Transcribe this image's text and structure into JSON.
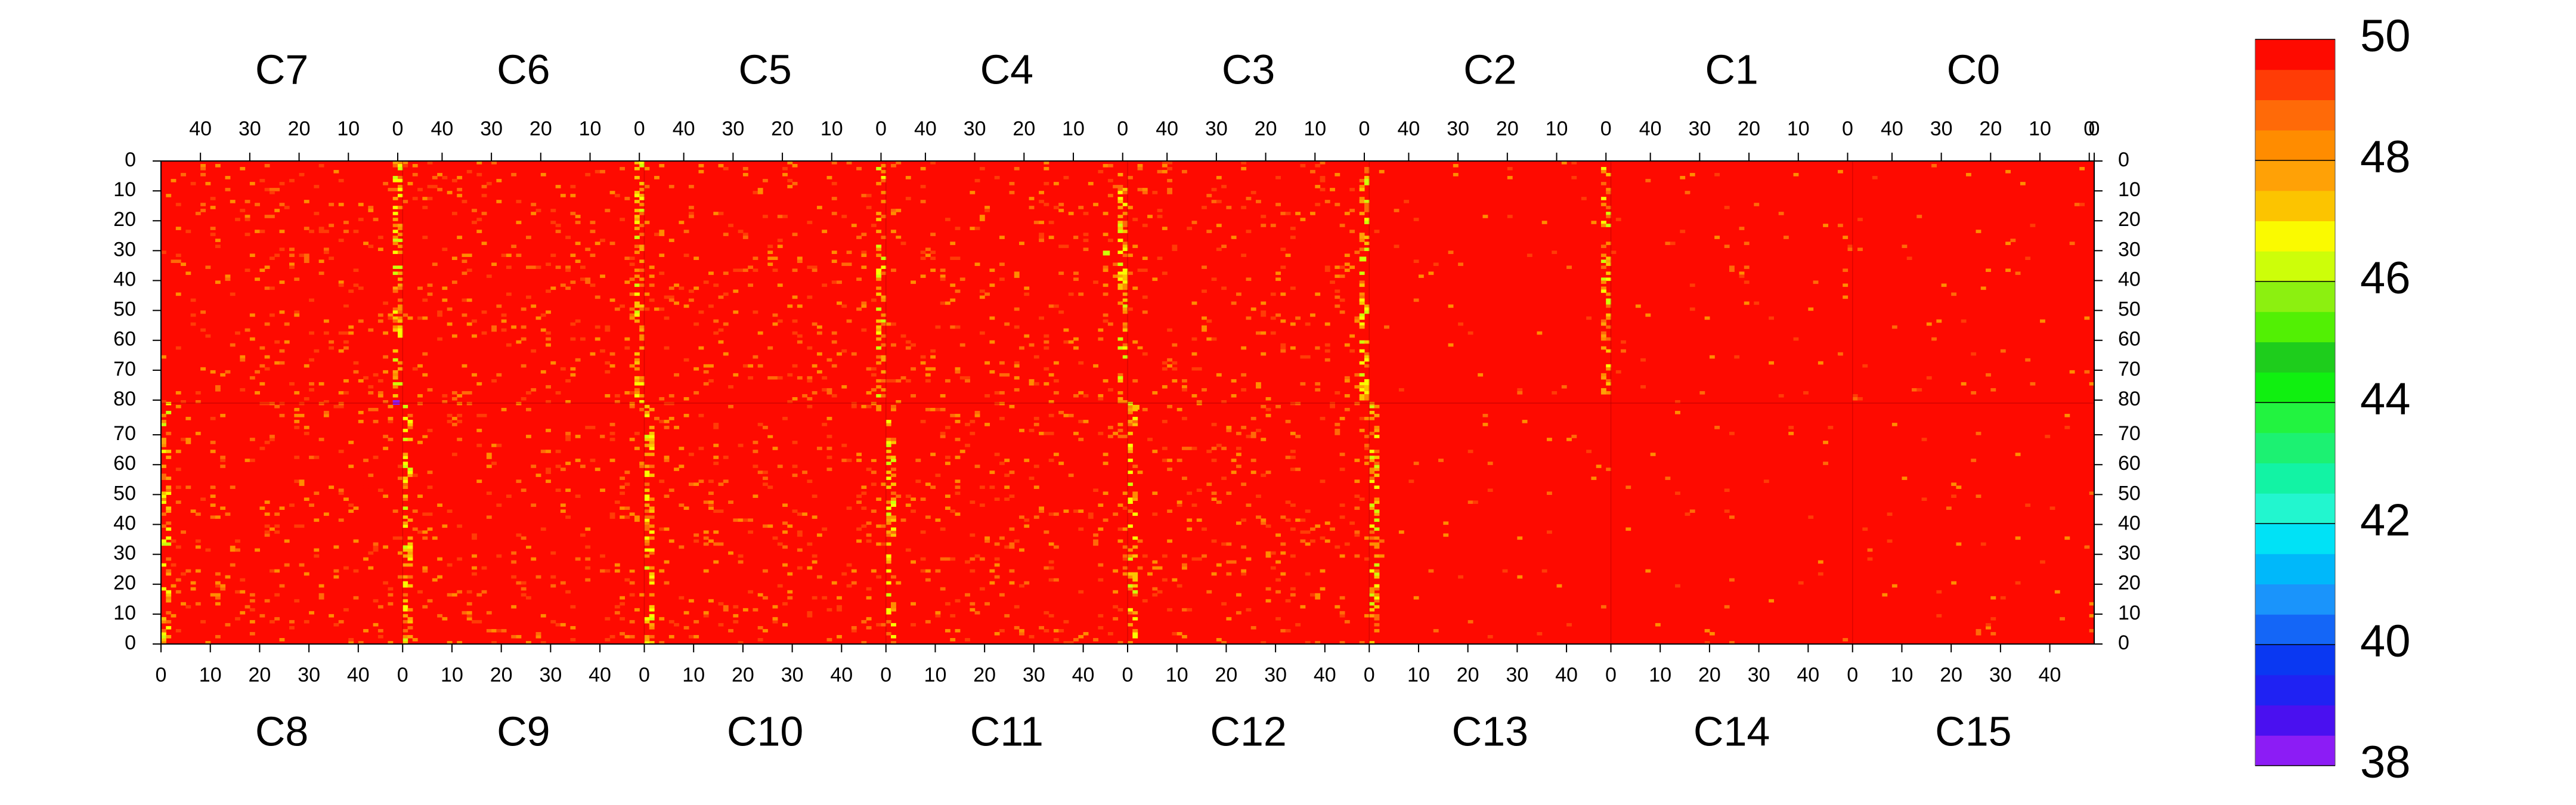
{
  "chart_data": {
    "type": "heatmap",
    "title": "",
    "xlabel": "",
    "ylabel": "",
    "zrange": [
      38,
      50
    ],
    "colorbar": {
      "ticks": [
        50,
        48,
        46,
        44,
        42,
        40,
        38
      ],
      "colors": [
        "#8c1cf5",
        "#4a10f0",
        "#1f22f3",
        "#0a38f2",
        "#1466f7",
        "#1a94fb",
        "#00b8fa",
        "#00e2f6",
        "#22f6cf",
        "#12f3a4",
        "#1cf172",
        "#22f340",
        "#10f010",
        "#1ecd1c",
        "#52f004",
        "#8cf010",
        "#cdfe09",
        "#fafa00",
        "#fcc400",
        "#ffa106",
        "#ff8c00",
        "#ff6a08",
        "#ff3c06",
        "#fe0a00"
      ],
      "position": "right"
    },
    "default_value": 50,
    "top_panels": [
      "C7",
      "C6",
      "C5",
      "C4",
      "C3",
      "C2",
      "C1",
      "C0"
    ],
    "bottom_panels": [
      "C8",
      "C9",
      "C10",
      "C11",
      "C12",
      "C13",
      "C14",
      "C15"
    ],
    "panel_x_range": [
      0,
      48
    ],
    "top_x_ticks": [
      40,
      30,
      20,
      10,
      0
    ],
    "bottom_x_ticks": [
      0,
      10,
      20,
      30,
      40
    ],
    "top_y_ticks": [
      0,
      10,
      20,
      30,
      40,
      50,
      60,
      70,
      80
    ],
    "bottom_y_ticks": [
      80,
      70,
      60,
      50,
      40,
      30,
      20,
      10,
      0
    ],
    "y_range": [
      0,
      80
    ],
    "hot_channel_columns": [
      0,
      1
    ],
    "hot_channel_value_range": [
      46,
      49
    ],
    "notable_points": [
      {
        "panel": "C7",
        "channel_x": 1,
        "row_y": 80,
        "value": 38
      },
      {
        "panel": "C3",
        "channel_x": 1,
        "row_y": 32,
        "value": 46
      },
      {
        "panel": "C12",
        "channel_x": 1,
        "row_y": 79,
        "value": 47
      },
      {
        "panel": "C4",
        "channel_x": 4,
        "row_y": 30,
        "value": 46
      }
    ]
  }
}
